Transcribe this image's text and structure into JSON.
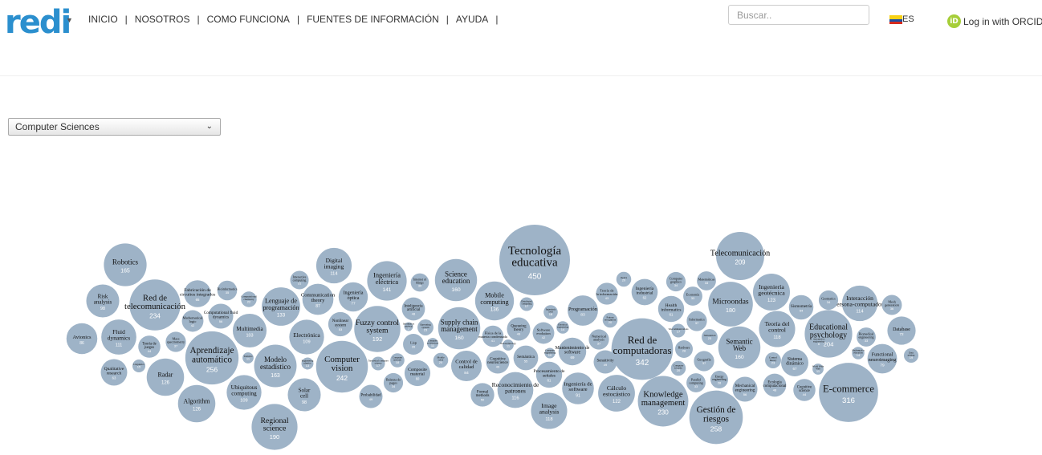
{
  "header": {
    "logo_text": "redi",
    "menu": [
      "INICIO",
      "NOSOTROS",
      "COMO FUNCIONA",
      "FUENTES DE INFORMACIÓN",
      "AYUDA"
    ],
    "menu_separator": "|",
    "search_placeholder": "Buscar..",
    "language_label": "ES",
    "orcid_badge": "iD",
    "orcid_label": "Log in with ORCID"
  },
  "area_select": {
    "selected": "Computer Sciences"
  },
  "colors": {
    "bubble": "#9eb3c7",
    "logo": "#2b8fce",
    "orcid": "#a6ce39"
  },
  "chart_data": {
    "type": "bubble",
    "title": "",
    "bubbles": [
      {
        "label": "Tecnología educativa",
        "value": 450
      },
      {
        "label": "Red de computadoras",
        "value": 342
      },
      {
        "label": "E-commerce",
        "value": 316
      },
      {
        "label": "Gestión de riesgos",
        "value": 258
      },
      {
        "label": "Aprendizaje automático",
        "value": 256
      },
      {
        "label": "Computer vision",
        "value": 242
      },
      {
        "label": "Red de telecomunicación",
        "value": 234
      },
      {
        "label": "Knowledge management",
        "value": 230
      },
      {
        "label": "Telecomunicación",
        "value": 209
      },
      {
        "label": "Educational psychology",
        "value": 204
      },
      {
        "label": "Fuzzy control system",
        "value": 192
      },
      {
        "label": "Regional science",
        "value": 190
      },
      {
        "label": "Microondas",
        "value": 180
      },
      {
        "label": "Robotics",
        "value": 165
      },
      {
        "label": "Modelo estadístico",
        "value": 163
      },
      {
        "label": "Science education",
        "value": 160
      },
      {
        "label": "Supply chain management",
        "value": 160
      },
      {
        "label": "Semantic Web",
        "value": 160
      },
      {
        "label": "Ingeniería eléctrica",
        "value": 141
      },
      {
        "label": "Mobile computing",
        "value": 136
      },
      {
        "label": "Lenguaje de programación",
        "value": 133
      },
      {
        "label": "Radar",
        "value": 126
      },
      {
        "label": "Algorithm",
        "value": 126
      },
      {
        "label": "Ingeniería geotécnica",
        "value": 123
      },
      {
        "label": "Cálculo estocástico",
        "value": 122
      },
      {
        "label": "Image analysis",
        "value": 118
      },
      {
        "label": "Teoría del control",
        "value": 118
      },
      {
        "label": "Reconocimiento de patrones",
        "value": 116
      },
      {
        "label": "Digital imaging",
        "value": 114
      },
      {
        "label": "Interacción persona-computadora",
        "value": 114
      },
      {
        "label": "Fluid dynamics",
        "value": 111
      },
      {
        "label": "Ubiquitous computing",
        "value": 109
      },
      {
        "label": "Electrónica",
        "value": 109
      },
      {
        "label": "Multimedia",
        "value": 103
      },
      {
        "label": "Risk analysis",
        "value": 98
      },
      {
        "label": "Solar cell",
        "value": 98
      },
      {
        "label": "Ingeniería de software",
        "value": 91
      },
      {
        "label": "Communication theory",
        "value": 87
      },
      {
        "label": "Avionics",
        "value": 86
      },
      {
        "label": "Control de calidad",
        "value": 84
      },
      {
        "label": "Programación",
        "value": 83
      },
      {
        "label": "Functional neuroimaging",
        "value": 79
      },
      {
        "label": "Ingeniería óptica",
        "value": 77
      },
      {
        "label": "Database",
        "value": 72
      },
      {
        "label": "Mantenimiento de software",
        "value": 69
      },
      {
        "label": "Sistema dinámico",
        "value": 67
      },
      {
        "label": "Fabricación de circuitos integrados",
        "value": 65
      },
      {
        "label": "Qualitative research",
        "value": 63
      },
      {
        "label": "Ingeniería industrial",
        "value": 62
      },
      {
        "label": "Health informatics",
        "value": 61
      },
      {
        "label": "Procesamiento de señales",
        "value": 61
      },
      {
        "label": "Composite material",
        "value": 60
      },
      {
        "label": "Computational fluid dynamics",
        "value": 56
      },
      {
        "label": "Mechanical engineering",
        "value": 56
      },
      {
        "label": "Semántica",
        "value": 55
      },
      {
        "label": "Sismometría",
        "value": 54
      },
      {
        "label": "Nonlinear system",
        "value": 53
      },
      {
        "label": "Formal methods",
        "value": 50
      },
      {
        "label": "Sensitivity",
        "value": 49
      },
      {
        "label": "Queueing theory",
        "value": 49
      },
      {
        "label": "Cognitive neuroscience",
        "value": 49
      },
      {
        "label": "Probabilidad",
        "value": 49
      },
      {
        "label": "Inteligencia artificial",
        "value": 48
      },
      {
        "label": "Ecología computacional",
        "value": 48
      },
      {
        "label": "Cognitive science",
        "value": 44
      },
      {
        "label": "Teoría de juegos",
        "value": 44
      },
      {
        "label": "Teoría de la información",
        "value": 43
      },
      {
        "label": "Mathematical logic",
        "value": 42
      },
      {
        "label": "Software evolution",
        "value": 42
      },
      {
        "label": "Física de la materia condensada",
        "value": 41
      },
      {
        "label": "Lisp",
        "value": 39
      },
      {
        "label": "Informatics",
        "value": 37
      },
      {
        "label": "Geografía",
        "value": 37
      },
      {
        "label": "Numerical analysis",
        "value": 37
      },
      {
        "label": "Mass spectrometry",
        "value": 37
      },
      {
        "label": "Mesh generation",
        "value": 36
      },
      {
        "label": "Bioinformatics",
        "value": 35
      },
      {
        "label": "Balanza de pagos",
        "value": 34
      },
      {
        "label": "Computer graphics",
        "value": 34
      },
      {
        "label": "Geomatics",
        "value": 34
      },
      {
        "label": "Biomedical engineering",
        "value": 33
      },
      {
        "label": "Economía",
        "value": 33
      },
      {
        "label": "Matemáticas",
        "value": 33
      },
      {
        "label": "Parallel computing",
        "value": 33
      },
      {
        "label": "Interactive computing",
        "value": 31
      },
      {
        "label": "Internet of things",
        "value": 30
      },
      {
        "label": "Energy engineering",
        "value": 28
      },
      {
        "label": "Hardware",
        "value": 28
      },
      {
        "label": "Control theory",
        "value": 23
      },
      {
        "label": "Operating system",
        "value": 23
      },
      {
        "label": "Simulation",
        "value": 23
      },
      {
        "label": "Computational chemistry",
        "value": 22
      },
      {
        "label": "Mobile robot",
        "value": 20
      },
      {
        "label": "Computer security",
        "value": 20
      },
      {
        "label": "Optics",
        "value": 20
      },
      {
        "label": "Pattern recognition",
        "value": 20
      },
      {
        "label": "Data mining",
        "value": 19
      },
      {
        "label": "Ingeniería civil",
        "value": 18
      },
      {
        "label": "Computer network",
        "value": 18
      },
      {
        "label": "Distributed computing",
        "value": 17
      },
      {
        "label": "Telecommunications",
        "value": 17
      },
      {
        "label": "Theoretical computer science",
        "value": 17
      },
      {
        "label": "Linguistics",
        "value": 15
      },
      {
        "label": "Mathematics education",
        "value": 14
      },
      {
        "label": "Electrical engineering",
        "value": 14
      },
      {
        "label": "Engineering physics",
        "value": 13
      },
      {
        "label": "Computer architecture",
        "value": 11
      },
      {
        "label": "Statistics",
        "value": 11
      },
      {
        "label": "World Wide Web",
        "value": 11
      },
      {
        "label": "Nanotechnology",
        "value": 11
      },
      {
        "label": "Computer engineering",
        "value": 10
      },
      {
        "label": "Information retrieval",
        "value": 7
      },
      {
        "label": "Automotive engineering",
        "value": 6
      },
      {
        "label": "Electronic engineering",
        "value": 5
      },
      {
        "label": "Systems engineering",
        "value": 4
      },
      {
        "label": "Algebra",
        "value": 4
      }
    ]
  }
}
